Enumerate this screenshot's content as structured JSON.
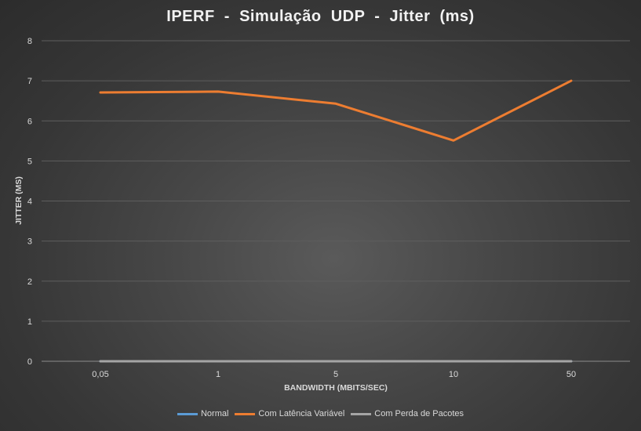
{
  "chart_data": {
    "type": "line",
    "title": "IPERF  -  Simulação  UDP  -  Jitter  (ms)",
    "xlabel": "BANDWIDTH (MBITS/SEC)",
    "ylabel": "JITTER (MS)",
    "categories": [
      "0,05",
      "1",
      "5",
      "10",
      "50"
    ],
    "ylim": [
      0,
      8
    ],
    "yticks": [
      "0",
      "1",
      "2",
      "3",
      "4",
      "5",
      "6",
      "7",
      "8"
    ],
    "grid": true,
    "legend_position": "bottom",
    "series": [
      {
        "name": "Normal",
        "color": "#5b9bd5",
        "values": [
          0,
          0,
          0,
          0,
          0
        ]
      },
      {
        "name": "Com Latência Variável",
        "color": "#ed7d31",
        "values": [
          6.71,
          6.73,
          6.43,
          5.51,
          7.0
        ]
      },
      {
        "name": "Com Perda de Pacotes",
        "color": "#a5a5a5",
        "values": [
          0,
          0,
          0,
          0,
          0
        ]
      }
    ]
  }
}
